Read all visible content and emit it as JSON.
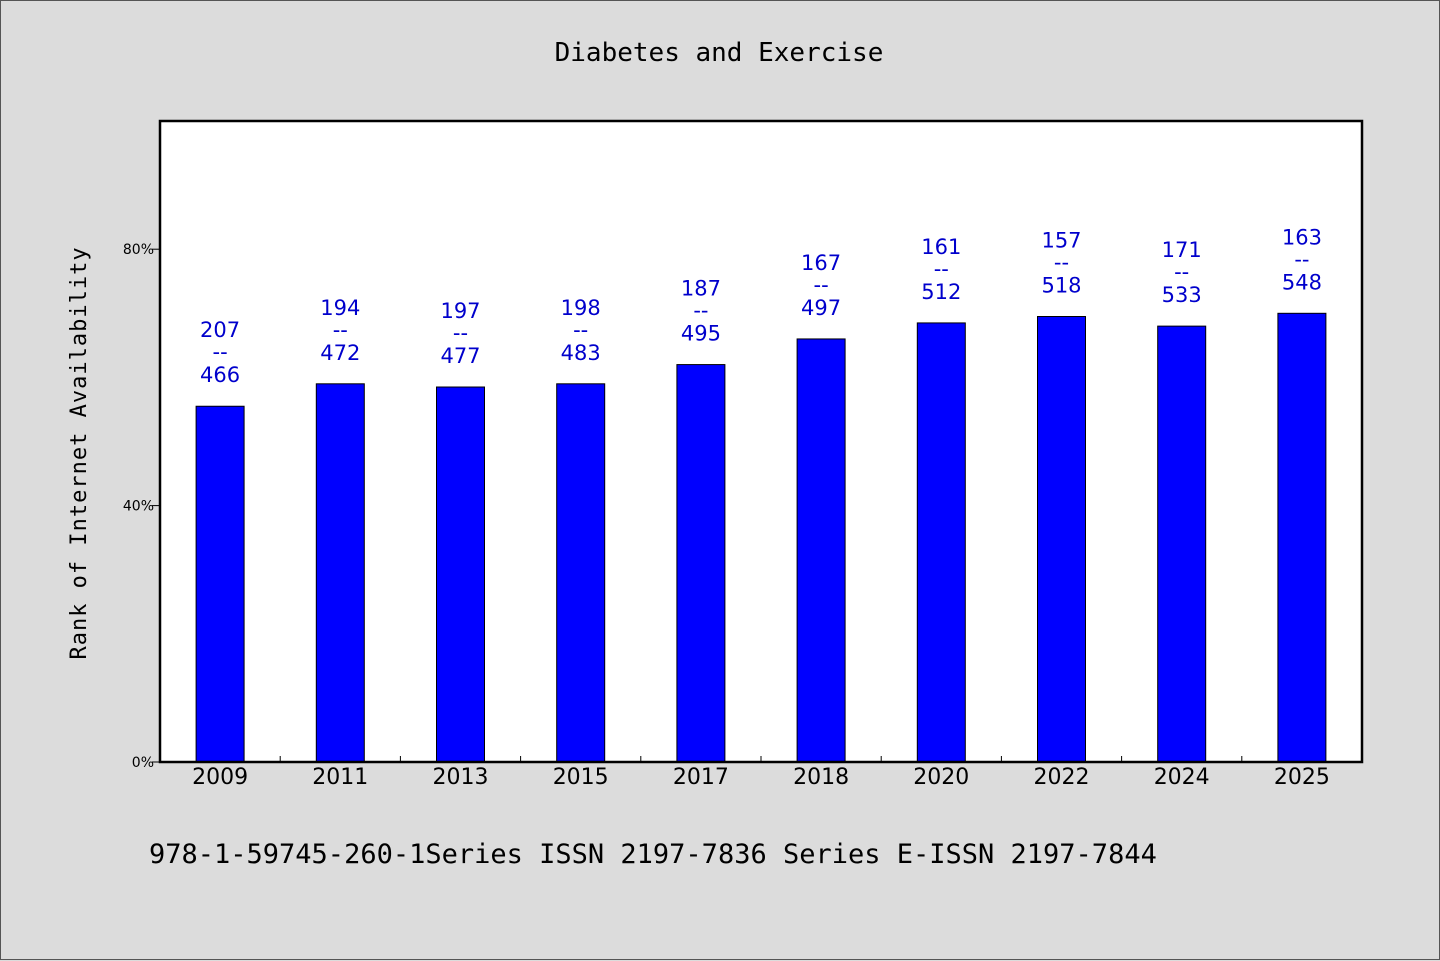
{
  "chart_data": {
    "type": "bar",
    "title": "Diabetes and Exercise",
    "ylabel": "Rank of Internet Availability",
    "xlabel": "",
    "categories": [
      "2009",
      "2011",
      "2013",
      "2015",
      "2017",
      "2018",
      "2020",
      "2022",
      "2024",
      "2025"
    ],
    "values": [
      55.5,
      59,
      58.5,
      59,
      62,
      66,
      68.5,
      69.5,
      68,
      70
    ],
    "data_labels": [
      {
        "top": "207",
        "sep": "--",
        "bottom": "466"
      },
      {
        "top": "194",
        "sep": "--",
        "bottom": "472"
      },
      {
        "top": "197",
        "sep": "--",
        "bottom": "477"
      },
      {
        "top": "198",
        "sep": "--",
        "bottom": "483"
      },
      {
        "top": "187",
        "sep": "--",
        "bottom": "495"
      },
      {
        "top": "167",
        "sep": "--",
        "bottom": "497"
      },
      {
        "top": "161",
        "sep": "--",
        "bottom": "512"
      },
      {
        "top": "157",
        "sep": "--",
        "bottom": "518"
      },
      {
        "top": "171",
        "sep": "--",
        "bottom": "533"
      },
      {
        "top": "163",
        "sep": "--",
        "bottom": "548"
      }
    ],
    "ylim": [
      0,
      100
    ],
    "yticks": [
      0,
      40,
      80
    ],
    "ytick_labels": [
      "0%",
      "40%",
      "80%"
    ],
    "grid": false,
    "bar_color": "#0000ff",
    "label_color": "#0000cc"
  },
  "footer": "978-1-59745-260-1Series ISSN 2197-7836 Series E-ISSN 2197-7844"
}
